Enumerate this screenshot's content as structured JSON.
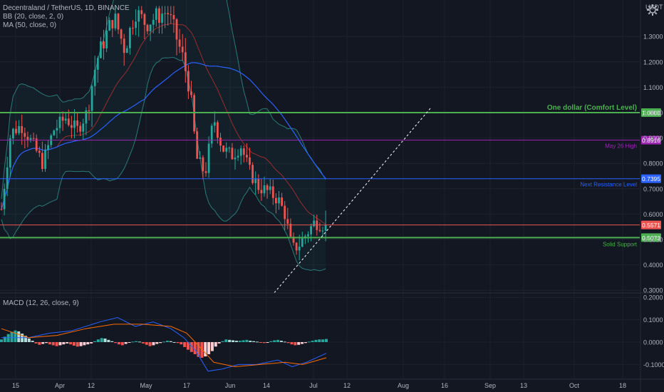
{
  "header": {
    "symbol_line": "Decentraland / TetherUS, 1D, BINANCE",
    "bb_line": "BB (20, close, 2, 0)",
    "ma_line": "MA (50, close, 0)",
    "currency": "USDT"
  },
  "macd_legend": "MACD (12, 26, close, 9)",
  "colors": {
    "background": "#131722",
    "up": "#26a69a",
    "down": "#ef5350",
    "grid": "#1e222d",
    "axis_text": "#b2b5be",
    "bb_line": "#2a7a78",
    "bb_fill": "rgba(38,166,154,0.06)",
    "ma": "#2962ff",
    "basis": "#9b2d2d",
    "macd_line": "#2962ff",
    "signal_line": "#ff6d00"
  },
  "chart_data": [
    {
      "type": "candlestick",
      "title": "Decentraland / TetherUS, 1D, BINANCE",
      "price_axis_ticks": [
        "1.3000",
        "1.2000",
        "1.1000",
        "1.0000",
        "0.9000",
        "0.8000",
        "0.7000",
        "0.6000",
        "0.5000",
        "0.4000",
        "0.3000"
      ],
      "ylim": [
        0.28,
        1.42
      ],
      "time_axis_ticks": [
        "15",
        "Apr",
        "12",
        "May",
        "17",
        "Jun",
        "14",
        "Jul",
        "12",
        "Aug",
        "16",
        "Sep",
        "13",
        "Oct",
        "18"
      ],
      "price_segments": [
        {
          "x": 2,
          "v": 0.62
        },
        {
          "x": 15,
          "v": 0.92
        },
        {
          "x": 30,
          "v": 0.95
        },
        {
          "x": 45,
          "v": 0.88
        },
        {
          "x": 60,
          "v": 0.8
        },
        {
          "x": 75,
          "v": 0.93
        },
        {
          "x": 92,
          "v": 0.98
        },
        {
          "x": 108,
          "v": 0.93
        },
        {
          "x": 122,
          "v": 1.0
        },
        {
          "x": 135,
          "v": 1.2
        },
        {
          "x": 148,
          "v": 1.3
        },
        {
          "x": 160,
          "v": 1.38
        },
        {
          "x": 175,
          "v": 1.25
        },
        {
          "x": 190,
          "v": 1.4
        },
        {
          "x": 205,
          "v": 1.35
        },
        {
          "x": 220,
          "v": 1.38
        },
        {
          "x": 235,
          "v": 1.4
        },
        {
          "x": 245,
          "v": 1.32
        },
        {
          "x": 256,
          "v": 1.22
        },
        {
          "x": 266,
          "v": 1.1
        },
        {
          "x": 276,
          "v": 0.82
        },
        {
          "x": 288,
          "v": 0.76
        },
        {
          "x": 300,
          "v": 0.98
        },
        {
          "x": 312,
          "v": 0.86
        },
        {
          "x": 325,
          "v": 0.83
        },
        {
          "x": 338,
          "v": 0.87
        },
        {
          "x": 350,
          "v": 0.77
        },
        {
          "x": 362,
          "v": 0.71
        },
        {
          "x": 375,
          "v": 0.69
        },
        {
          "x": 390,
          "v": 0.66
        },
        {
          "x": 400,
          "v": 0.6
        },
        {
          "x": 410,
          "v": 0.46
        },
        {
          "x": 420,
          "v": 0.48
        },
        {
          "x": 432,
          "v": 0.53
        },
        {
          "x": 442,
          "v": 0.57
        },
        {
          "x": 452,
          "v": 0.56
        },
        {
          "x": 458,
          "v": 0.557
        }
      ],
      "levels": [
        {
          "label": "One dollar (Comfort Level)",
          "value": 1.0,
          "tag": "1.0000",
          "color": "#4caf50",
          "width": 2
        },
        {
          "label": "May 26 High",
          "value": 0.8916,
          "tag": "0.8916",
          "color": "#9c27b0",
          "width": 1
        },
        {
          "label": "Next Resistance Level",
          "value": 0.7395,
          "tag": "0.7395",
          "color": "#2962ff",
          "width": 1
        },
        {
          "label": "",
          "value": 0.5571,
          "tag": "0.5571",
          "color": "#ef5350",
          "width": 1
        },
        {
          "label": "Solid Support",
          "value": 0.5073,
          "tag": "0.5073",
          "color": "#4caf50",
          "width": 2
        }
      ],
      "trendline": {
        "from": {
          "x": 385,
          "v": 0.29
        },
        "to": {
          "x": 605,
          "v": 1.02
        }
      }
    },
    {
      "type": "histogram+line",
      "title": "MACD (12, 26, close, 9)",
      "price_axis_ticks": [
        "0.2000",
        "0.1000",
        "0.0000",
        "-0.1000"
      ],
      "ylim": [
        -0.16,
        0.21
      ],
      "histogram": [
        0.012,
        0.024,
        0.036,
        0.046,
        0.052,
        0.048,
        0.038,
        0.028,
        0.016,
        0.006,
        -0.006,
        -0.012,
        -0.008,
        -0.004,
        -0.01,
        -0.014,
        -0.018,
        -0.014,
        -0.01,
        -0.006,
        -0.01,
        -0.016,
        -0.02,
        -0.018,
        -0.014,
        -0.01,
        -0.006,
        0.004,
        0.012,
        0.018,
        0.016,
        0.01,
        0.004,
        -0.004,
        -0.01,
        -0.014,
        -0.008,
        -0.002,
        0.002,
        0.004,
        0.002,
        -0.006,
        -0.012,
        -0.018,
        -0.014,
        -0.008,
        -0.004,
        0.002,
        0.006,
        0.004,
        0.0,
        -0.004,
        -0.01,
        -0.022,
        -0.034,
        -0.044,
        -0.054,
        -0.066,
        -0.07,
        -0.064,
        -0.054,
        -0.04,
        -0.02,
        -0.006,
        0.004,
        0.012,
        0.01,
        0.008,
        0.006,
        0.006,
        0.008,
        0.01,
        0.006,
        0.004,
        0.002,
        -0.002,
        -0.004,
        -0.002,
        0.004,
        0.008,
        0.01,
        0.006,
        0.002,
        -0.004,
        -0.01,
        -0.014,
        -0.012,
        -0.008,
        -0.004,
        0.002,
        0.006,
        0.01,
        0.012,
        0.012,
        0.014
      ],
      "macd_line": [
        {
          "x": 2,
          "v": 0.02
        },
        {
          "x": 40,
          "v": 0.02
        },
        {
          "x": 70,
          "v": 0.04
        },
        {
          "x": 100,
          "v": 0.05
        },
        {
          "x": 140,
          "v": 0.09
        },
        {
          "x": 165,
          "v": 0.11
        },
        {
          "x": 190,
          "v": 0.07
        },
        {
          "x": 215,
          "v": 0.09
        },
        {
          "x": 240,
          "v": 0.06
        },
        {
          "x": 258,
          "v": 0.02
        },
        {
          "x": 275,
          "v": -0.04
        },
        {
          "x": 292,
          "v": -0.13
        },
        {
          "x": 312,
          "v": -0.12
        },
        {
          "x": 335,
          "v": -0.1
        },
        {
          "x": 360,
          "v": -0.1
        },
        {
          "x": 390,
          "v": -0.08
        },
        {
          "x": 410,
          "v": -0.11
        },
        {
          "x": 430,
          "v": -0.09
        },
        {
          "x": 458,
          "v": -0.05
        }
      ],
      "signal_line": [
        {
          "x": 2,
          "v": 0.06
        },
        {
          "x": 40,
          "v": 0.02
        },
        {
          "x": 80,
          "v": 0.03
        },
        {
          "x": 120,
          "v": 0.06
        },
        {
          "x": 160,
          "v": 0.08
        },
        {
          "x": 200,
          "v": 0.08
        },
        {
          "x": 240,
          "v": 0.07
        },
        {
          "x": 262,
          "v": 0.04
        },
        {
          "x": 280,
          "v": -0.02
        },
        {
          "x": 300,
          "v": -0.09
        },
        {
          "x": 330,
          "v": -0.11
        },
        {
          "x": 365,
          "v": -0.1
        },
        {
          "x": 400,
          "v": -0.09
        },
        {
          "x": 425,
          "v": -0.1
        },
        {
          "x": 458,
          "v": -0.07
        }
      ]
    }
  ]
}
